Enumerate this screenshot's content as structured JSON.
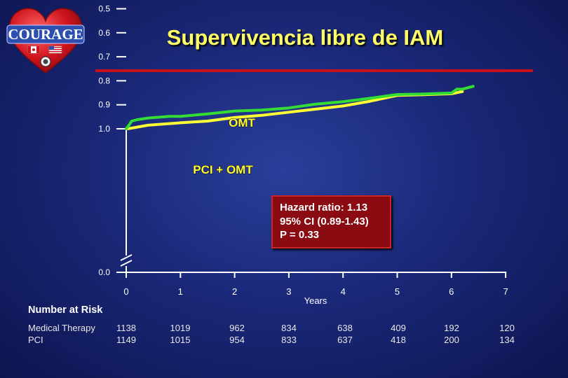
{
  "slide": {
    "title": "Supervivencia libre de IAM",
    "logo_text": "COURAGE"
  },
  "colors": {
    "title": "#ffff66",
    "rule": "#c8101a",
    "omt_line": "#ffff33",
    "pci_line": "#33dd33",
    "hazard_box": "#8b0b12"
  },
  "chart_data": {
    "type": "line",
    "xlabel": "Years",
    "ylabel": "",
    "x_ticks": [
      0,
      1,
      2,
      3,
      4,
      5,
      6,
      7
    ],
    "y_ticks": [
      {
        "value": 0.0,
        "label": "0.0"
      },
      {
        "value": 0.5,
        "label": "0.5"
      },
      {
        "value": 0.6,
        "label": "0.6"
      },
      {
        "value": 0.7,
        "label": "0.7"
      },
      {
        "value": 0.8,
        "label": "0.8"
      },
      {
        "value": 0.9,
        "label": "0.9"
      },
      {
        "value": 1.0,
        "label": "1.0"
      }
    ],
    "xlim": [
      0,
      7
    ],
    "y_axis_break": "between 0.0 and 0.5",
    "series": [
      {
        "name": "OMT",
        "color": "#ffff33",
        "x": [
          0,
          0.05,
          0.2,
          0.4,
          1,
          1.5,
          2,
          2.5,
          3,
          3.5,
          4,
          4.5,
          5,
          5.5,
          6,
          6.2
        ],
        "y": [
          1.0,
          0.999,
          0.993,
          0.985,
          0.975,
          0.968,
          0.953,
          0.944,
          0.931,
          0.918,
          0.905,
          0.885,
          0.861,
          0.858,
          0.854,
          0.845
        ]
      },
      {
        "name": "PCI + OMT",
        "color": "#33dd33",
        "x": [
          0,
          0.05,
          0.1,
          0.2,
          0.4,
          0.8,
          1,
          1.5,
          2,
          2.5,
          3,
          3.5,
          4,
          4.5,
          5,
          5.5,
          6,
          6.1,
          6.2,
          6.4
        ],
        "y": [
          1.0,
          0.985,
          0.968,
          0.962,
          0.955,
          0.948,
          0.948,
          0.938,
          0.926,
          0.922,
          0.913,
          0.897,
          0.887,
          0.873,
          0.857,
          0.855,
          0.851,
          0.835,
          0.835,
          0.823
        ]
      }
    ],
    "series_labels": [
      "OMT",
      "PCI + OMT"
    ],
    "annotation": {
      "hr": "Hazard ratio: 1.13",
      "ci": "95% CI (0.89-1.43)",
      "p": "P = 0.33"
    },
    "risk_table": {
      "title": "Number at Risk",
      "rows": [
        {
          "label": "Medical Therapy",
          "values": [
            "1138",
            "1019",
            "962",
            "834",
            "638",
            "409",
            "192",
            "120"
          ]
        },
        {
          "label": "PCI",
          "values": [
            "1149",
            "1015",
            "954",
            "833",
            "637",
            "418",
            "200",
            "134"
          ]
        }
      ]
    }
  }
}
